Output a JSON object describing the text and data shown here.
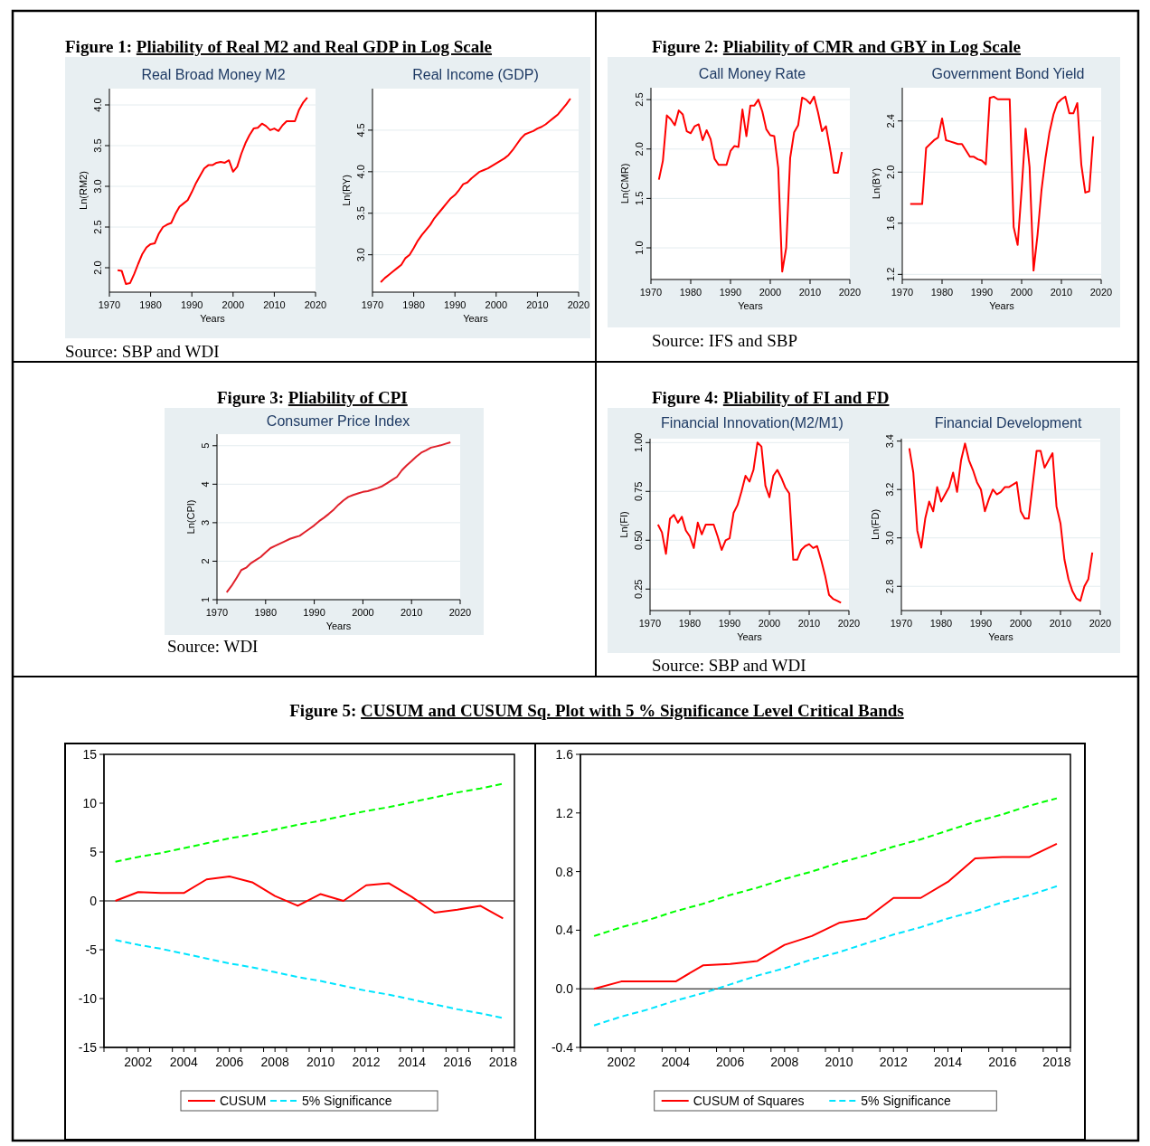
{
  "chart_data": [
    {
      "type": "line",
      "title": "Real Broad Money M2",
      "xlabel": "Years",
      "ylabel": "Ln(RM2)",
      "annotations": [
        "Figure 1: Pliability of Real M2 and Real GDP in Log Scale",
        "Source: SBP and WDI"
      ],
      "grid": "y",
      "xlim": [
        1970,
        2020
      ],
      "xticks": [
        1970,
        1980,
        1990,
        2000,
        2010,
        2020
      ],
      "ylim": [
        1.7,
        4.2
      ],
      "yticks": [
        {
          "value": 2,
          "label": "2.0"
        },
        2.5,
        {
          "value": 3,
          "label": "3.0"
        },
        3.5,
        {
          "value": 4,
          "label": "4.0"
        }
      ],
      "color": "#ff0000",
      "x": [
        1972,
        1973,
        1974,
        1975,
        1976,
        1977,
        1978,
        1979,
        1980,
        1981,
        1982,
        1983,
        1984,
        1985,
        1986,
        1987,
        1988,
        1989,
        1990,
        1991,
        1992,
        1993,
        1994,
        1995,
        1996,
        1997,
        1998,
        1999,
        2000,
        2001,
        2002,
        2003,
        2004,
        2005,
        2006,
        2007,
        2008,
        2009,
        2010,
        2011,
        2012,
        2013,
        2014,
        2015,
        2016,
        2017,
        2018
      ],
      "values": [
        1.97,
        1.96,
        1.8,
        1.81,
        1.92,
        2.05,
        2.17,
        2.25,
        2.29,
        2.3,
        2.42,
        2.5,
        2.53,
        2.55,
        2.66,
        2.75,
        2.79,
        2.83,
        2.93,
        3.04,
        3.13,
        3.22,
        3.26,
        3.26,
        3.29,
        3.3,
        3.29,
        3.32,
        3.18,
        3.24,
        3.4,
        3.53,
        3.63,
        3.71,
        3.72,
        3.77,
        3.74,
        3.69,
        3.71,
        3.68,
        3.75,
        3.8,
        3.8,
        3.8,
        3.94,
        4.03,
        4.09
      ]
    },
    {
      "type": "line",
      "title": "Real Income (GDP)",
      "xlabel": "Years",
      "ylabel": "Ln(RY)",
      "grid": "y",
      "xlim": [
        1970,
        2020
      ],
      "xticks": [
        1970,
        1980,
        1990,
        2000,
        2010,
        2020
      ],
      "ylim": [
        2.55,
        5.0
      ],
      "yticks": [
        {
          "value": 3,
          "label": "3.0"
        },
        3.5,
        {
          "value": 4,
          "label": "4.0"
        },
        4.5
      ],
      "color": "#ff0000",
      "x": [
        1972,
        1973,
        1974,
        1975,
        1976,
        1977,
        1978,
        1979,
        1980,
        1981,
        1982,
        1983,
        1984,
        1985,
        1986,
        1987,
        1988,
        1989,
        1990,
        1991,
        1992,
        1993,
        1994,
        1995,
        1996,
        1997,
        1998,
        1999,
        2000,
        2001,
        2002,
        2003,
        2004,
        2005,
        2006,
        2007,
        2008,
        2009,
        2010,
        2011,
        2012,
        2013,
        2014,
        2015,
        2016,
        2017,
        2018
      ],
      "values": [
        2.67,
        2.72,
        2.76,
        2.8,
        2.84,
        2.88,
        2.96,
        3.0,
        3.08,
        3.17,
        3.24,
        3.3,
        3.36,
        3.44,
        3.5,
        3.56,
        3.62,
        3.68,
        3.72,
        3.78,
        3.85,
        3.87,
        3.92,
        3.96,
        4.0,
        4.02,
        4.04,
        4.07,
        4.1,
        4.13,
        4.16,
        4.2,
        4.26,
        4.33,
        4.4,
        4.45,
        4.47,
        4.49,
        4.52,
        4.54,
        4.57,
        4.61,
        4.65,
        4.69,
        4.75,
        4.81,
        4.88
      ]
    },
    {
      "type": "line",
      "title": "Call Money Rate",
      "xlabel": "Years",
      "ylabel": "Ln(CMR)",
      "annotations": [
        "Figure 2: Pliability of CMR and GBY in Log Scale",
        "Source: IFS and SBP"
      ],
      "grid": "y",
      "xlim": [
        1970,
        2020
      ],
      "xticks": [
        1970,
        1980,
        1990,
        2000,
        2010,
        2020
      ],
      "ylim": [
        0.68,
        2.62
      ],
      "yticks": [
        {
          "value": 1,
          "label": "1.0"
        },
        1.5,
        {
          "value": 2,
          "label": "2.0"
        },
        2.5
      ],
      "color": "#ff0000",
      "x": [
        1972,
        1973,
        1974,
        1975,
        1976,
        1977,
        1978,
        1979,
        1980,
        1981,
        1982,
        1983,
        1984,
        1985,
        1986,
        1987,
        1988,
        1989,
        1990,
        1991,
        1992,
        1993,
        1994,
        1995,
        1996,
        1997,
        1998,
        1999,
        2000,
        2001,
        2002,
        2003,
        2004,
        2005,
        2006,
        2007,
        2008,
        2009,
        2010,
        2011,
        2012,
        2013,
        2014,
        2015,
        2016,
        2017,
        2018
      ],
      "values": [
        1.69,
        1.88,
        2.34,
        2.3,
        2.24,
        2.39,
        2.35,
        2.18,
        2.16,
        2.23,
        2.25,
        2.09,
        2.19,
        2.1,
        1.9,
        1.84,
        1.84,
        1.84,
        1.98,
        2.03,
        2.02,
        2.4,
        2.13,
        2.44,
        2.44,
        2.5,
        2.38,
        2.2,
        2.14,
        2.13,
        1.81,
        0.76,
        1.0,
        1.91,
        2.17,
        2.24,
        2.52,
        2.5,
        2.46,
        2.53,
        2.37,
        2.18,
        2.23,
        2.01,
        1.76,
        1.76,
        1.97
      ]
    },
    {
      "type": "line",
      "title": "Government Bond Yield",
      "xlabel": "Years",
      "ylabel": "Ln(BY)",
      "grid": "y",
      "xlim": [
        1970,
        2020
      ],
      "xticks": [
        1970,
        1980,
        1990,
        2000,
        2010,
        2020
      ],
      "ylim": [
        1.16,
        2.66
      ],
      "yticks": [
        1.2,
        1.6,
        {
          "value": 2,
          "label": "2.0"
        },
        2.4
      ],
      "color": "#ff0000",
      "x": [
        1972,
        1973,
        1974,
        1975,
        1976,
        1977,
        1978,
        1979,
        1980,
        1981,
        1982,
        1983,
        1984,
        1985,
        1986,
        1987,
        1988,
        1989,
        1990,
        1991,
        1992,
        1993,
        1994,
        1995,
        1996,
        1997,
        1998,
        1999,
        2000,
        2001,
        2002,
        2003,
        2004,
        2005,
        2006,
        2007,
        2008,
        2009,
        2010,
        2011,
        2012,
        2013,
        2014,
        2015,
        2016,
        2017,
        2018
      ],
      "values": [
        1.75,
        1.75,
        1.75,
        1.75,
        2.19,
        2.22,
        2.25,
        2.27,
        2.42,
        2.25,
        2.24,
        2.23,
        2.22,
        2.22,
        2.17,
        2.12,
        2.12,
        2.1,
        2.09,
        2.06,
        2.58,
        2.59,
        2.57,
        2.57,
        2.57,
        2.57,
        1.57,
        1.43,
        1.86,
        2.34,
        2.04,
        1.23,
        1.51,
        1.86,
        2.11,
        2.31,
        2.45,
        2.54,
        2.57,
        2.59,
        2.46,
        2.46,
        2.54,
        2.06,
        1.84,
        1.85,
        2.28
      ]
    },
    {
      "type": "line",
      "title": "Consumer Price Index",
      "xlabel": "Years",
      "ylabel": "Ln(CPI)",
      "annotations": [
        "Figure 3: Pliability of CPI",
        "Source: WDI"
      ],
      "grid": "y",
      "xlim": [
        1970,
        2020
      ],
      "xticks": [
        1970,
        1980,
        1990,
        2000,
        2010,
        2020
      ],
      "ylim": [
        1.0,
        5.3
      ],
      "yticks": [
        1,
        2,
        3,
        4,
        5
      ],
      "color": "#e0202a",
      "x": [
        1972,
        1973,
        1974,
        1975,
        1976,
        1977,
        1978,
        1979,
        1980,
        1981,
        1982,
        1983,
        1984,
        1985,
        1986,
        1987,
        1988,
        1989,
        1990,
        1991,
        1992,
        1993,
        1994,
        1995,
        1996,
        1997,
        1998,
        1999,
        2000,
        2001,
        2002,
        2003,
        2004,
        2005,
        2006,
        2007,
        2008,
        2009,
        2010,
        2011,
        2012,
        2013,
        2014,
        2015,
        2016,
        2017,
        2018
      ],
      "values": [
        1.19,
        1.36,
        1.56,
        1.77,
        1.83,
        1.95,
        2.03,
        2.11,
        2.23,
        2.34,
        2.4,
        2.46,
        2.52,
        2.58,
        2.62,
        2.66,
        2.75,
        2.84,
        2.93,
        3.04,
        3.13,
        3.23,
        3.34,
        3.47,
        3.58,
        3.67,
        3.72,
        3.76,
        3.8,
        3.82,
        3.86,
        3.9,
        3.95,
        4.03,
        4.11,
        4.19,
        4.36,
        4.49,
        4.6,
        4.72,
        4.82,
        4.88,
        4.95,
        4.98,
        5.01,
        5.05,
        5.09
      ]
    },
    {
      "type": "line",
      "title": "Financial Innovation(M2/M1)",
      "xlabel": "Years",
      "ylabel": "Ln(FI)",
      "annotations": [
        "Figure 4: Pliability of FI and FD",
        "Source: SBP and WDI"
      ],
      "grid": "y",
      "xlim": [
        1970,
        2020
      ],
      "xticks": [
        1970,
        1980,
        1990,
        2000,
        2010,
        2020
      ],
      "ylim": [
        0.14,
        1.02
      ],
      "yticks": [
        0.25,
        {
          "value": 0.5,
          "label": "0.50"
        },
        0.75,
        {
          "value": 1,
          "label": "1.00"
        }
      ],
      "color": "#ff0000",
      "x": [
        1972,
        1973,
        1974,
        1975,
        1976,
        1977,
        1978,
        1979,
        1980,
        1981,
        1982,
        1983,
        1984,
        1985,
        1986,
        1987,
        1988,
        1989,
        1990,
        1991,
        1992,
        1993,
        1994,
        1995,
        1996,
        1997,
        1998,
        1999,
        2000,
        2001,
        2002,
        2003,
        2004,
        2005,
        2006,
        2007,
        2008,
        2009,
        2010,
        2011,
        2012,
        2013,
        2014,
        2015,
        2016,
        2017,
        2018
      ],
      "values": [
        0.58,
        0.54,
        0.43,
        0.61,
        0.63,
        0.59,
        0.62,
        0.55,
        0.52,
        0.46,
        0.59,
        0.53,
        0.58,
        0.58,
        0.58,
        0.52,
        0.45,
        0.5,
        0.51,
        0.64,
        0.68,
        0.75,
        0.83,
        0.8,
        0.86,
        1.0,
        0.98,
        0.78,
        0.72,
        0.83,
        0.86,
        0.82,
        0.77,
        0.74,
        0.4,
        0.4,
        0.45,
        0.47,
        0.48,
        0.46,
        0.47,
        0.4,
        0.32,
        0.22,
        0.2,
        0.19,
        0.18
      ]
    },
    {
      "type": "line",
      "title": "Financial Development",
      "xlabel": "Years",
      "ylabel": "Ln(FD)",
      "grid": "y",
      "xlim": [
        1970,
        2020
      ],
      "xticks": [
        1970,
        1980,
        1990,
        2000,
        2010,
        2020
      ],
      "ylim": [
        2.7,
        3.41
      ],
      "yticks": [
        2.8,
        {
          "value": 3,
          "label": "3.0"
        },
        3.2,
        3.4
      ],
      "color": "#ff0000",
      "x": [
        1972,
        1973,
        1974,
        1975,
        1976,
        1977,
        1978,
        1979,
        1980,
        1981,
        1982,
        1983,
        1984,
        1985,
        1986,
        1987,
        1988,
        1989,
        1990,
        1991,
        1992,
        1993,
        1994,
        1995,
        1996,
        1997,
        1998,
        1999,
        2000,
        2001,
        2002,
        2003,
        2004,
        2005,
        2006,
        2007,
        2008,
        2009,
        2010,
        2011,
        2012,
        2013,
        2014,
        2015,
        2016,
        2017,
        2018
      ],
      "values": [
        3.37,
        3.27,
        3.03,
        2.96,
        3.08,
        3.15,
        3.11,
        3.21,
        3.15,
        3.18,
        3.21,
        3.27,
        3.19,
        3.32,
        3.39,
        3.32,
        3.28,
        3.23,
        3.2,
        3.11,
        3.16,
        3.2,
        3.18,
        3.19,
        3.21,
        3.21,
        3.22,
        3.23,
        3.11,
        3.08,
        3.08,
        3.22,
        3.36,
        3.36,
        3.29,
        3.32,
        3.35,
        3.13,
        3.06,
        2.91,
        2.83,
        2.78,
        2.75,
        2.74,
        2.8,
        2.83,
        2.94
      ]
    },
    {
      "type": "line",
      "annotations": [
        "Figure 5: CUSUM and CUSUM Sq. Plot with 5 % Significance Level Critical Bands"
      ],
      "legend": "bottom",
      "xlim": [
        2000.5,
        2018.5
      ],
      "ylim": [
        -15,
        15
      ],
      "yticks": [
        -15,
        -10,
        -5,
        0,
        5,
        10,
        15
      ],
      "xticks": [
        {
          "value": 2000.5,
          "label": null
        },
        {
          "value": 2001.5,
          "label": null
        },
        2002,
        {
          "value": 2002.5,
          "label": null
        },
        {
          "value": 2003.5,
          "label": null
        },
        2004,
        {
          "value": 2004.5,
          "label": null
        },
        {
          "value": 2005.5,
          "label": null
        },
        2006,
        {
          "value": 2006.5,
          "label": null
        },
        {
          "value": 2007.5,
          "label": null
        },
        2008,
        {
          "value": 2008.5,
          "label": null
        },
        {
          "value": 2009.5,
          "label": null
        },
        2010,
        {
          "value": 2010.5,
          "label": null
        },
        {
          "value": 2011.5,
          "label": null
        },
        2012,
        {
          "value": 2012.5,
          "label": null
        },
        {
          "value": 2013.5,
          "label": null
        },
        2014,
        {
          "value": 2014.5,
          "label": null
        },
        {
          "value": 2015.5,
          "label": null
        },
        2016,
        {
          "value": 2016.5,
          "label": null
        },
        {
          "value": 2017.5,
          "label": null
        },
        2018,
        {
          "value": 2018.5,
          "label": null
        }
      ],
      "ref_lines": [
        {
          "axis": "y",
          "value": 0,
          "color": "#000000"
        }
      ],
      "x": [
        2001,
        2002,
        2003,
        2004,
        2005,
        2006,
        2007,
        2008,
        2009,
        2010,
        2011,
        2012,
        2013,
        2014,
        2015,
        2016,
        2017,
        2018
      ],
      "series": [
        {
          "name": "CUSUM",
          "color": "#ff0000",
          "values": [
            0.0,
            0.9,
            0.8,
            0.8,
            2.2,
            2.5,
            1.9,
            0.5,
            -0.5,
            0.7,
            0.0,
            1.6,
            1.8,
            0.4,
            -1.2,
            -0.9,
            -0.5,
            -1.8
          ]
        },
        {
          "name": "5% Significance",
          "color": "#00e5ff",
          "line_style": "dashed",
          "values": [
            -4.0,
            -4.5,
            -4.9,
            -5.4,
            -5.9,
            -6.4,
            -6.8,
            -7.3,
            -7.8,
            -8.2,
            -8.7,
            -9.2,
            -9.6,
            -10.1,
            -10.6,
            -11.1,
            -11.5,
            -12.0
          ]
        },
        {
          "color": "#00ff00",
          "line_style": "dashed",
          "values": [
            4.0,
            4.5,
            4.9,
            5.4,
            5.9,
            6.4,
            6.8,
            7.3,
            7.8,
            8.2,
            8.7,
            9.2,
            9.6,
            10.1,
            10.6,
            11.1,
            11.5,
            12.0
          ]
        }
      ]
    },
    {
      "type": "line",
      "legend": "bottom",
      "xlim": [
        2000.5,
        2018.5
      ],
      "ylim": [
        -0.4,
        1.6
      ],
      "yticks": [
        -0.4,
        {
          "value": 0,
          "label": "0.0"
        },
        0.4,
        0.8,
        1.2,
        1.6
      ],
      "xticks": [
        {
          "value": 2000.5,
          "label": null
        },
        {
          "value": 2001.5,
          "label": null
        },
        2002,
        {
          "value": 2002.5,
          "label": null
        },
        {
          "value": 2003.5,
          "label": null
        },
        2004,
        {
          "value": 2004.5,
          "label": null
        },
        {
          "value": 2005.5,
          "label": null
        },
        2006,
        {
          "value": 2006.5,
          "label": null
        },
        {
          "value": 2007.5,
          "label": null
        },
        2008,
        {
          "value": 2008.5,
          "label": null
        },
        {
          "value": 2009.5,
          "label": null
        },
        2010,
        {
          "value": 2010.5,
          "label": null
        },
        {
          "value": 2011.5,
          "label": null
        },
        2012,
        {
          "value": 2012.5,
          "label": null
        },
        {
          "value": 2013.5,
          "label": null
        },
        2014,
        {
          "value": 2014.5,
          "label": null
        },
        {
          "value": 2015.5,
          "label": null
        },
        2016,
        {
          "value": 2016.5,
          "label": null
        },
        {
          "value": 2017.5,
          "label": null
        },
        2018,
        {
          "value": 2018.5,
          "label": null
        }
      ],
      "ref_lines": [
        {
          "axis": "y",
          "value": 0,
          "color": "#000000"
        }
      ],
      "x": [
        2001,
        2002,
        2003,
        2004,
        2005,
        2006,
        2007,
        2008,
        2009,
        2010,
        2011,
        2012,
        2013,
        2014,
        2015,
        2016,
        2017,
        2018
      ],
      "series": [
        {
          "name": "CUSUM of Squares",
          "color": "#ff0000",
          "values": [
            0.0,
            0.05,
            0.05,
            0.05,
            0.16,
            0.17,
            0.19,
            0.3,
            0.36,
            0.45,
            0.48,
            0.62,
            0.62,
            0.73,
            0.89,
            0.9,
            0.9,
            0.99
          ]
        },
        {
          "name": "5% Significance",
          "color": "#00e5ff",
          "line_style": "dashed",
          "values": [
            -0.25,
            -0.19,
            -0.14,
            -0.08,
            -0.03,
            0.03,
            0.09,
            0.14,
            0.2,
            0.25,
            0.31,
            0.37,
            0.42,
            0.48,
            0.53,
            0.59,
            0.64,
            0.7
          ]
        },
        {
          "color": "#00ff00",
          "line_style": "dashed",
          "values": [
            0.36,
            0.42,
            0.47,
            0.53,
            0.58,
            0.64,
            0.69,
            0.75,
            0.8,
            0.86,
            0.91,
            0.97,
            1.02,
            1.08,
            1.14,
            1.19,
            1.25,
            1.3
          ]
        }
      ]
    }
  ]
}
